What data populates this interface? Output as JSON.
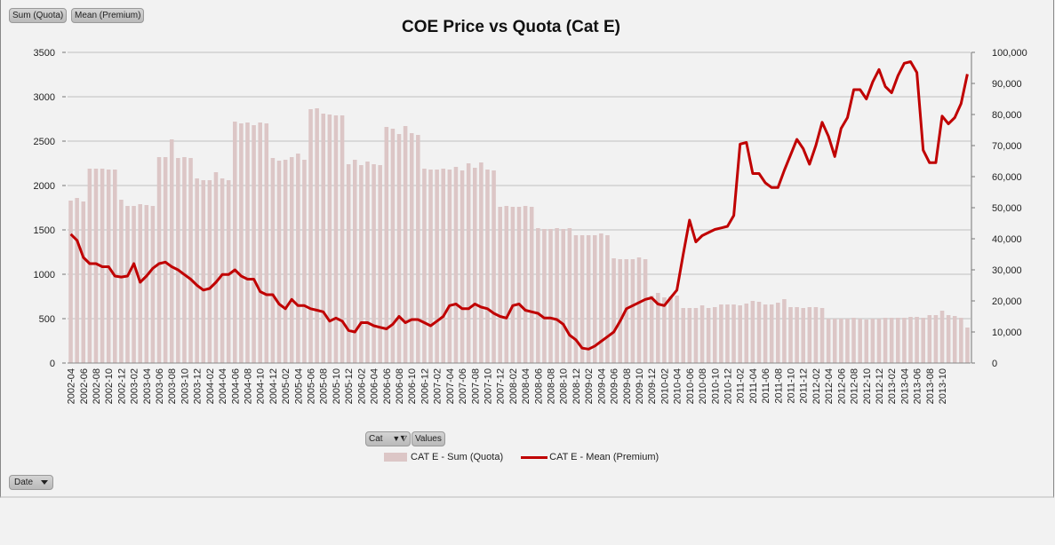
{
  "field_buttons": {
    "values": [
      "Sum (Quota)",
      "Mean (Premium)"
    ],
    "category": "Cat",
    "values_label": "Values",
    "axis_field": "Date"
  },
  "colors": {
    "bar": "#dcc6c6",
    "line": "#c00000",
    "background": "#f2f2f2",
    "grid": "#d9d9d9"
  },
  "chart_data": {
    "type": "bar+line",
    "title": "COE Price vs Quota (Cat E)",
    "xlabel": "",
    "ylabel": "",
    "ylim": [
      0,
      3500
    ],
    "y2lim": [
      0,
      100000
    ],
    "yticks": [
      0,
      500,
      1000,
      1500,
      2000,
      2500,
      3000,
      3500
    ],
    "y2ticks": [
      "0",
      "10,000",
      "20,000",
      "30,000",
      "40,000",
      "50,000",
      "60,000",
      "70,000",
      "80,000",
      "90,000",
      "100,000"
    ],
    "grid": true,
    "legend_position": "bottom",
    "x_tick_labels": [
      "2002-04",
      "2002-06",
      "2002-08",
      "2002-10",
      "2002-12",
      "2003-02",
      "2003-04",
      "2003-06",
      "2003-08",
      "2003-10",
      "2003-12",
      "2004-02",
      "2004-04",
      "2004-06",
      "2004-08",
      "2004-10",
      "2004-12",
      "2005-02",
      "2005-04",
      "2005-06",
      "2005-08",
      "2005-10",
      "2005-12",
      "2006-02",
      "2006-04",
      "2006-06",
      "2006-08",
      "2006-10",
      "2006-12",
      "2007-02",
      "2007-04",
      "2007-06",
      "2007-08",
      "2007-10",
      "2007-12",
      "2008-02",
      "2008-04",
      "2008-06",
      "2008-08",
      "2008-10",
      "2008-12",
      "2009-02",
      "2009-04",
      "2009-06",
      "2009-08",
      "2009-10",
      "2009-12",
      "2010-02",
      "2010-04",
      "2010-06",
      "2010-08",
      "2010-10",
      "2010-12",
      "2011-02",
      "2011-04",
      "2011-06",
      "2011-08",
      "2011-10",
      "2011-12",
      "2012-02",
      "2012-04",
      "2012-06",
      "2012-08",
      "2012-10",
      "2012-12",
      "2013-02",
      "2013-04",
      "2013-06",
      "2013-08",
      "2013-10"
    ],
    "x_start": "2002-04",
    "x_end": "2013-10",
    "series": [
      {
        "name": "CAT E - Sum (Quota)",
        "type": "bar",
        "axis": "left",
        "values": [
          1830,
          1860,
          1820,
          2190,
          2190,
          2190,
          2180,
          2180,
          1840,
          1770,
          1770,
          1790,
          1780,
          1770,
          2320,
          2320,
          2520,
          2310,
          2320,
          2310,
          2080,
          2060,
          2060,
          2150,
          2080,
          2060,
          2720,
          2700,
          2710,
          2680,
          2710,
          2700,
          2310,
          2280,
          2290,
          2320,
          2360,
          2290,
          2860,
          2870,
          2810,
          2800,
          2790,
          2790,
          2240,
          2290,
          2230,
          2270,
          2240,
          2230,
          2660,
          2640,
          2580,
          2670,
          2590,
          2570,
          2190,
          2180,
          2180,
          2190,
          2180,
          2210,
          2170,
          2250,
          2200,
          2260,
          2180,
          2170,
          1760,
          1770,
          1760,
          1760,
          1770,
          1760,
          1520,
          1510,
          1510,
          1520,
          1510,
          1520,
          1440,
          1440,
          1440,
          1440,
          1460,
          1440,
          1180,
          1170,
          1170,
          1170,
          1190,
          1170,
          760,
          790,
          740,
          750,
          760,
          620,
          620,
          620,
          650,
          620,
          630,
          660,
          660,
          660,
          650,
          670,
          700,
          690,
          660,
          660,
          680,
          720,
          630,
          630,
          620,
          630,
          630,
          620,
          500,
          500,
          500,
          500,
          510,
          500,
          490,
          500,
          500,
          510,
          510,
          510,
          510,
          520,
          520,
          510,
          540,
          540,
          590,
          540,
          530,
          510,
          400
        ]
      },
      {
        "name": "CAT E - Mean (Premium)",
        "type": "line",
        "axis": "right",
        "values": [
          41500,
          39500,
          34000,
          32000,
          32000,
          31000,
          31000,
          28000,
          27700,
          28000,
          32000,
          26000,
          28000,
          30500,
          32000,
          32500,
          31000,
          30000,
          28500,
          27000,
          25000,
          23500,
          24000,
          26000,
          28500,
          28500,
          30000,
          28000,
          27000,
          27000,
          23000,
          22000,
          22000,
          19000,
          17500,
          20500,
          18500,
          18500,
          17500,
          17000,
          16500,
          13500,
          14500,
          13500,
          10500,
          10000,
          13000,
          13000,
          12000,
          11500,
          11000,
          12500,
          15000,
          13000,
          14000,
          14000,
          13000,
          12000,
          13500,
          15000,
          18500,
          19000,
          17500,
          17500,
          19000,
          18000,
          17500,
          16000,
          15000,
          14500,
          18500,
          19000,
          17000,
          16500,
          16000,
          14500,
          14500,
          14000,
          12500,
          9000,
          7500,
          4800,
          4500,
          5500,
          7000,
          8500,
          10000,
          13500,
          17500,
          18500,
          19500,
          20500,
          21000,
          19000,
          18500,
          21000,
          23500,
          35000,
          46000,
          39000,
          41000,
          42000,
          43000,
          43500,
          44000,
          47500,
          70500,
          71000,
          61000,
          61000,
          58000,
          56500,
          56500,
          62000,
          67000,
          72000,
          69000,
          64000,
          70000,
          77500,
          73000,
          66500,
          75500,
          79000,
          88000,
          88000,
          85000,
          90500,
          94500,
          89000,
          87000,
          92500,
          96500,
          97000,
          93500,
          68500,
          64500,
          64500,
          79500,
          77000,
          79000,
          83500,
          93000
        ]
      }
    ]
  }
}
